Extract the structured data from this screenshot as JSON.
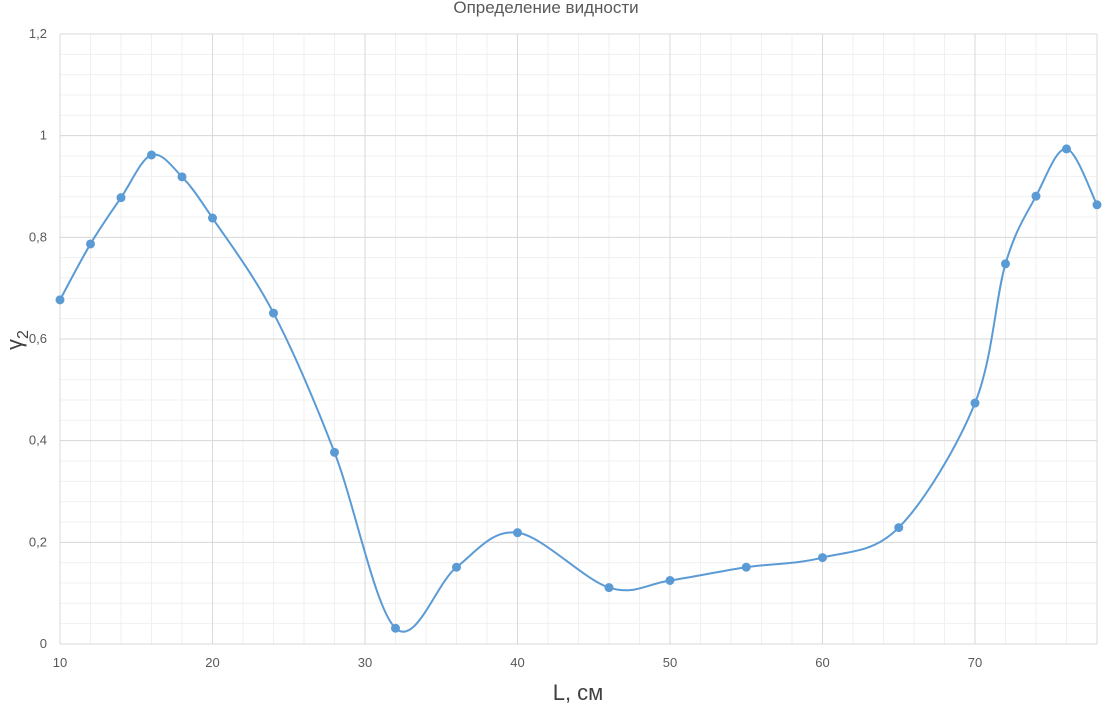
{
  "chart_data": {
    "type": "line",
    "title": "Определение видности",
    "xlabel": "L, см",
    "ylabel": "γ",
    "ylabel_subscript": "2",
    "xlim": [
      10,
      78
    ],
    "ylim": [
      0,
      1.2
    ],
    "x_ticks": [
      10,
      20,
      30,
      40,
      50,
      60,
      70
    ],
    "x_tick_labels": [
      "10",
      "20",
      "30",
      "40",
      "50",
      "60",
      "70"
    ],
    "y_ticks": [
      0,
      0.2,
      0.4,
      0.6,
      0.8,
      1,
      1.2
    ],
    "y_tick_labels": [
      "0",
      "0,2",
      "0,4",
      "0,6",
      "0,8",
      "1",
      "1,2"
    ],
    "grid": true,
    "smooth": true,
    "line_color": "#5B9BD5",
    "grid_major_color": "#d9d9d9",
    "grid_minor_color": "#f0f0f0",
    "series": [
      {
        "x": [
          10,
          12,
          14,
          16,
          18,
          20,
          24,
          28,
          32,
          36,
          40,
          46,
          50,
          55,
          60,
          65,
          70,
          72,
          74,
          76,
          78
        ],
        "values": [
          0.677,
          0.787,
          0.878,
          0.962,
          0.919,
          0.838,
          0.651,
          0.377,
          0.031,
          0.151,
          0.219,
          0.111,
          0.125,
          0.151,
          0.17,
          0.229,
          0.474,
          0.748,
          0.881,
          0.974,
          0.864
        ]
      }
    ]
  }
}
